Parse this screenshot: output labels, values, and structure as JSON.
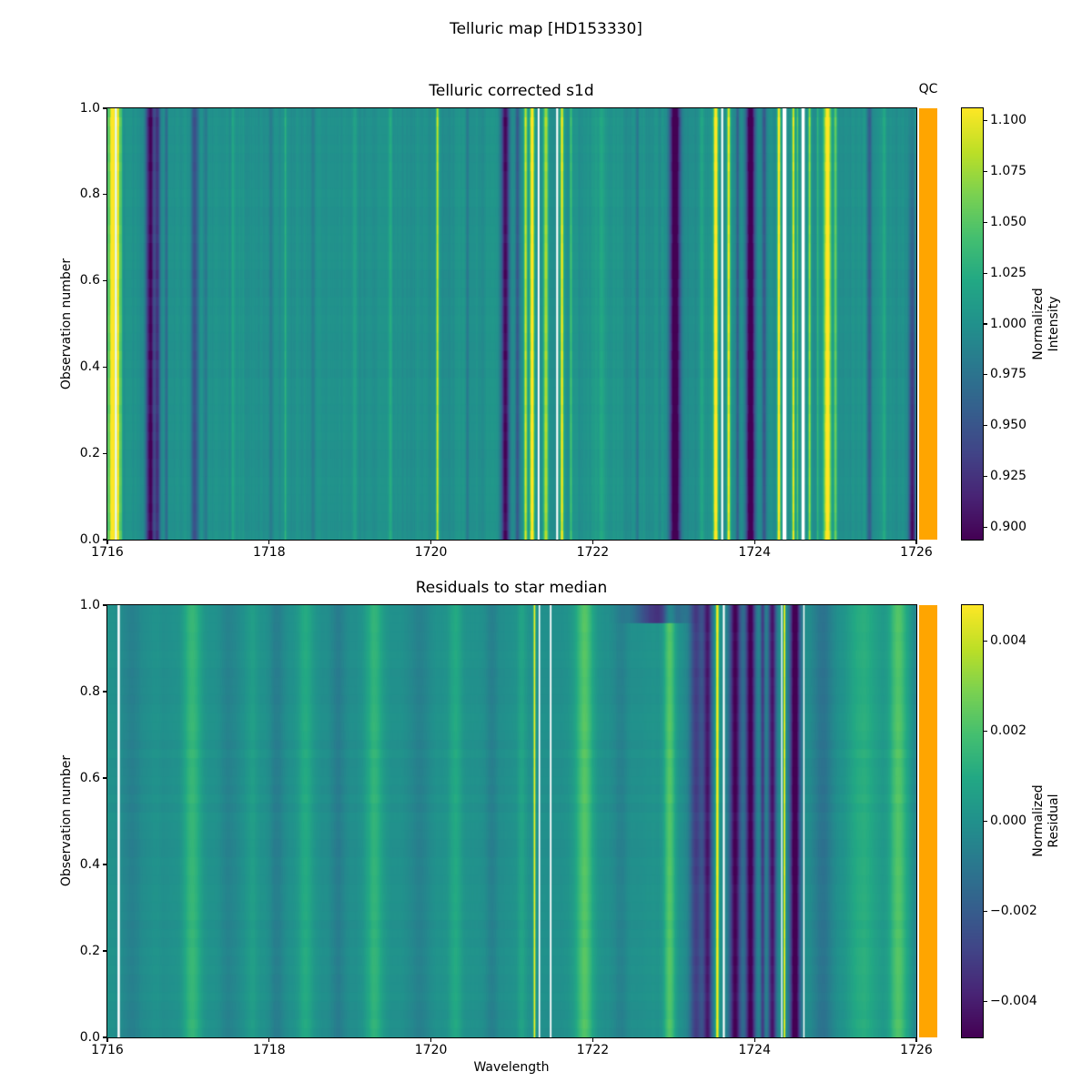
{
  "figure": {
    "title": "Telluric map [HD153330]",
    "background": "#ffffff",
    "nan_color": "#ffffff",
    "qc_color": "#ffa500",
    "text_color": "#000000"
  },
  "colormap_stops": [
    [
      0.0,
      "#440154"
    ],
    [
      0.1,
      "#482475"
    ],
    [
      0.2,
      "#414487"
    ],
    [
      0.3,
      "#355f8d"
    ],
    [
      0.4,
      "#2a788e"
    ],
    [
      0.5,
      "#21918c"
    ],
    [
      0.6,
      "#22a884"
    ],
    [
      0.7,
      "#44bf70"
    ],
    [
      0.8,
      "#7ad151"
    ],
    [
      0.9,
      "#bddf26"
    ],
    [
      1.0,
      "#fde725"
    ]
  ],
  "chart_data": [
    {
      "type": "heatmap",
      "title": "Telluric corrected s1d",
      "xlabel": "",
      "ylabel": "Observation number",
      "qc_label": "QC",
      "colormap": "viridis",
      "x_range": [
        1716,
        1726
      ],
      "y_range": [
        0,
        1
      ],
      "x_ticks": [
        {
          "v": 1716,
          "label": "1716"
        },
        {
          "v": 1718,
          "label": "1718"
        },
        {
          "v": 1720,
          "label": "1720"
        },
        {
          "v": 1722,
          "label": "1722"
        },
        {
          "v": 1724,
          "label": "1724"
        },
        {
          "v": 1726,
          "label": "1726"
        }
      ],
      "y_ticks": [
        {
          "v": 0.0,
          "label": "0.0"
        },
        {
          "v": 0.2,
          "label": "0.2"
        },
        {
          "v": 0.4,
          "label": "0.4"
        },
        {
          "v": 0.6,
          "label": "0.6"
        },
        {
          "v": 0.8,
          "label": "0.8"
        },
        {
          "v": 1.0,
          "label": "1.0"
        }
      ],
      "colorbar": {
        "label": "Normalized\nIntensity",
        "clim": [
          0.894,
          1.106
        ],
        "ticks": [
          {
            "v": 1.1,
            "label": "1.100"
          },
          {
            "v": 1.075,
            "label": "1.075"
          },
          {
            "v": 1.05,
            "label": "1.050"
          },
          {
            "v": 1.025,
            "label": "1.025"
          },
          {
            "v": 1.0,
            "label": "1.000"
          },
          {
            "v": 0.975,
            "label": "0.975"
          },
          {
            "v": 0.95,
            "label": "0.950"
          },
          {
            "v": 0.925,
            "label": "0.925"
          },
          {
            "v": 0.9,
            "label": "0.900"
          }
        ]
      },
      "base": 1.0,
      "bands": [
        [
          1716.01,
          0.012,
          0.05
        ],
        [
          1716.05,
          0.016,
          0.11
        ],
        [
          1716.08,
          0.012,
          0.12
        ],
        [
          1716.13,
          0.014,
          0.12
        ],
        [
          1716.17,
          0.012,
          0.05
        ],
        [
          1716.53,
          0.035,
          -0.105
        ],
        [
          1716.62,
          0.025,
          -0.075
        ],
        [
          1716.73,
          0.015,
          -0.03
        ],
        [
          1717.08,
          0.03,
          -0.055
        ],
        [
          1717.22,
          0.015,
          -0.025
        ],
        [
          1717.55,
          0.012,
          0.018
        ],
        [
          1718.02,
          0.015,
          -0.02
        ],
        [
          1718.2,
          0.01,
          0.032
        ],
        [
          1718.55,
          0.02,
          -0.015
        ],
        [
          1719.05,
          0.02,
          0.012
        ],
        [
          1719.5,
          0.015,
          0.02
        ],
        [
          1720.08,
          0.012,
          0.085
        ],
        [
          1720.45,
          0.015,
          -0.02
        ],
        [
          1720.92,
          0.035,
          -0.105
        ],
        [
          1721.07,
          0.02,
          -0.05
        ],
        [
          1721.17,
          0.014,
          0.09
        ],
        [
          1721.25,
          0.018,
          0.13
        ],
        [
          1721.42,
          0.02,
          0.08
        ],
        [
          1721.62,
          0.014,
          0.11
        ],
        [
          1721.73,
          0.012,
          0.04
        ],
        [
          1722.1,
          0.07,
          0.015
        ],
        [
          1722.55,
          0.015,
          -0.02
        ],
        [
          1723.02,
          0.045,
          -0.13
        ],
        [
          1723.35,
          0.02,
          0.02
        ],
        [
          1723.52,
          0.02,
          0.12
        ],
        [
          1723.68,
          0.014,
          0.1
        ],
        [
          1723.79,
          0.014,
          -0.045
        ],
        [
          1723.95,
          0.04,
          -0.12
        ],
        [
          1724.12,
          0.02,
          -0.05
        ],
        [
          1724.3,
          0.014,
          0.12
        ],
        [
          1724.48,
          0.011,
          0.1
        ],
        [
          1724.53,
          0.009,
          0.05
        ],
        [
          1724.68,
          0.011,
          0.08
        ],
        [
          1724.78,
          0.009,
          0.03
        ],
        [
          1724.9,
          0.03,
          0.12
        ],
        [
          1725.0,
          0.014,
          0.06
        ],
        [
          1725.42,
          0.02,
          -0.045
        ],
        [
          1725.6,
          0.02,
          0.02
        ],
        [
          1725.95,
          0.03,
          -0.06,
          -1.6
        ]
      ],
      "nan_columns": [
        [
          1716.105,
          0.011
        ],
        [
          1721.33,
          0.011
        ],
        [
          1721.56,
          0.012
        ],
        [
          1723.6,
          0.012
        ],
        [
          1724.37,
          0.024
        ],
        [
          1724.6,
          0.02
        ]
      ],
      "texture": {
        "rows": 48,
        "seed": 7,
        "stripe_noise": 0.008,
        "noise_blur": 1,
        "row_jitter": 0.07,
        "row_base": 0.0015
      }
    },
    {
      "type": "heatmap",
      "title": "Residuals to star median",
      "xlabel": "Wavelength",
      "ylabel": "Observation number",
      "qc_label": "",
      "colormap": "viridis",
      "x_range": [
        1716,
        1726
      ],
      "y_range": [
        0,
        1
      ],
      "x_ticks": [
        {
          "v": 1716,
          "label": "1716"
        },
        {
          "v": 1718,
          "label": "1718"
        },
        {
          "v": 1720,
          "label": "1720"
        },
        {
          "v": 1722,
          "label": "1722"
        },
        {
          "v": 1724,
          "label": "1724"
        },
        {
          "v": 1726,
          "label": "1726"
        }
      ],
      "y_ticks": [
        {
          "v": 0.0,
          "label": "0.0"
        },
        {
          "v": 0.2,
          "label": "0.2"
        },
        {
          "v": 0.4,
          "label": "0.4"
        },
        {
          "v": 0.6,
          "label": "0.6"
        },
        {
          "v": 0.8,
          "label": "0.8"
        },
        {
          "v": 1.0,
          "label": "1.0"
        }
      ],
      "colorbar": {
        "label": "Normalized\nResidual",
        "clim": [
          -0.0048,
          0.0048
        ],
        "ticks": [
          {
            "v": 0.004,
            "label": "0.004"
          },
          {
            "v": 0.002,
            "label": "0.002"
          },
          {
            "v": 0.0,
            "label": "0.000"
          },
          {
            "v": -0.002,
            "label": "−0.002"
          },
          {
            "v": -0.004,
            "label": "−0.004"
          }
        ]
      },
      "base": 0.0,
      "bands": [
        [
          1716.3,
          0.1,
          -0.0006
        ],
        [
          1717.05,
          0.08,
          0.0016
        ],
        [
          1717.5,
          0.08,
          -0.0005
        ],
        [
          1717.8,
          0.05,
          0.0006
        ],
        [
          1718.1,
          0.06,
          -0.0008
        ],
        [
          1718.45,
          0.07,
          0.001
        ],
        [
          1718.85,
          0.06,
          -0.0008
        ],
        [
          1719.3,
          0.08,
          0.0014
        ],
        [
          1719.85,
          0.07,
          -0.0006
        ],
        [
          1720.3,
          0.06,
          0.001
        ],
        [
          1720.75,
          0.05,
          -0.0006
        ],
        [
          1721.12,
          0.04,
          0.0008
        ],
        [
          1721.28,
          0.009,
          0.0052
        ],
        [
          1721.9,
          0.08,
          0.0022
        ],
        [
          1722.35,
          0.07,
          -0.0006
        ],
        [
          1722.8,
          0.2,
          -0.0035,
          0,
          0.96
        ],
        [
          1722.95,
          0.05,
          0.0022
        ],
        [
          1723.28,
          0.06,
          -0.003
        ],
        [
          1723.42,
          0.04,
          -0.004
        ],
        [
          1723.54,
          0.013,
          0.0054
        ],
        [
          1723.76,
          0.05,
          -0.0047
        ],
        [
          1723.95,
          0.045,
          -0.005
        ],
        [
          1724.1,
          0.02,
          -0.003
        ],
        [
          1724.22,
          0.035,
          -0.0042
        ],
        [
          1724.37,
          0.008,
          0.0054
        ],
        [
          1724.5,
          0.045,
          -0.0055
        ],
        [
          1724.85,
          0.09,
          -0.0012
        ],
        [
          1725.35,
          0.13,
          0.0012
        ],
        [
          1725.78,
          0.08,
          0.0022
        ],
        [
          1726.02,
          0.05,
          -0.0008
        ]
      ],
      "nan_columns": [
        [
          1716.14,
          0.014
        ],
        [
          1721.34,
          0.009
        ],
        [
          1721.48,
          0.01
        ],
        [
          1723.62,
          0.012
        ],
        [
          1724.335,
          0.007
        ],
        [
          1724.61,
          0.008
        ]
      ],
      "texture": {
        "rows": 48,
        "seed": 11,
        "stripe_noise": 0.0003,
        "noise_blur": 5,
        "row_jitter": 0.04,
        "row_base": 0.0001
      }
    }
  ]
}
